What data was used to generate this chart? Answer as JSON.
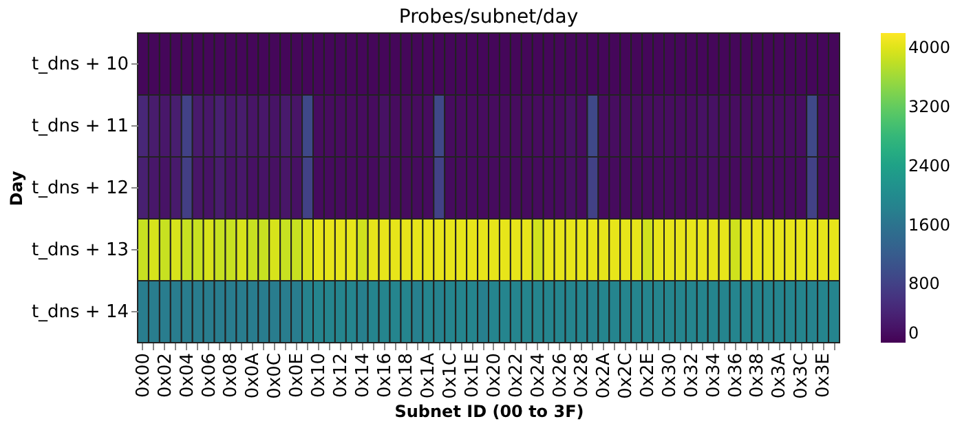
{
  "chart_data": {
    "type": "heatmap",
    "title": "Probes/subnet/day",
    "xlabel": "Subnet ID (00 to 3F)",
    "ylabel": "Day",
    "categories": [
      "0x00",
      null,
      "0x02",
      null,
      "0x04",
      null,
      "0x06",
      null,
      "0x08",
      null,
      "0x0A",
      null,
      "0x0C",
      null,
      "0x0E",
      null,
      "0x10",
      null,
      "0x12",
      null,
      "0x14",
      null,
      "0x16",
      null,
      "0x18",
      null,
      "0x1A",
      null,
      "0x1C",
      null,
      "0x1E",
      null,
      "0x20",
      null,
      "0x22",
      null,
      "0x24",
      null,
      "0x26",
      null,
      "0x28",
      null,
      "0x2A",
      null,
      "0x2C",
      null,
      "0x2E",
      null,
      "0x30",
      null,
      "0x32",
      null,
      "0x34",
      null,
      "0x36",
      null,
      "0x38",
      null,
      "0x3A",
      null,
      "0x3C",
      null,
      "0x3E",
      null
    ],
    "y_categories": [
      "t_dns + 10",
      "t_dns + 11",
      "t_dns + 12",
      "t_dns + 13",
      "t_dns + 14"
    ],
    "cells": [
      [
        60,
        60,
        60,
        60,
        60,
        60,
        60,
        60,
        60,
        60,
        60,
        60,
        60,
        60,
        60,
        60,
        60,
        60,
        60,
        60,
        60,
        60,
        60,
        60,
        60,
        60,
        60,
        60,
        60,
        60,
        60,
        60,
        60,
        60,
        60,
        60,
        60,
        60,
        60,
        60,
        60,
        60,
        60,
        60,
        60,
        60,
        60,
        60,
        60,
        60,
        60,
        60,
        60,
        60,
        60,
        60,
        60,
        60,
        60,
        60,
        60,
        60,
        60,
        60
      ],
      [
        450,
        300,
        250,
        330,
        800,
        280,
        250,
        350,
        250,
        300,
        220,
        250,
        200,
        280,
        220,
        900,
        120,
        120,
        120,
        120,
        120,
        120,
        180,
        120,
        120,
        120,
        120,
        900,
        120,
        120,
        120,
        120,
        120,
        120,
        120,
        120,
        120,
        120,
        120,
        180,
        120,
        900,
        130,
        130,
        130,
        130,
        130,
        130,
        130,
        130,
        130,
        180,
        180,
        130,
        130,
        130,
        130,
        130,
        130,
        130,
        130,
        900,
        120,
        120
      ],
      [
        350,
        250,
        200,
        280,
        750,
        230,
        200,
        300,
        200,
        250,
        180,
        200,
        170,
        230,
        180,
        800,
        110,
        110,
        110,
        110,
        110,
        110,
        150,
        110,
        110,
        110,
        110,
        800,
        110,
        110,
        110,
        110,
        110,
        110,
        110,
        110,
        110,
        110,
        110,
        150,
        110,
        800,
        110,
        110,
        110,
        110,
        110,
        110,
        110,
        110,
        110,
        150,
        150,
        110,
        110,
        110,
        110,
        110,
        110,
        110,
        110,
        800,
        110,
        110
      ],
      [
        3850,
        3950,
        3850,
        3950,
        3850,
        3850,
        3950,
        3850,
        3850,
        3950,
        3850,
        3850,
        3950,
        3850,
        3850,
        3950,
        4050,
        4050,
        4050,
        4050,
        3900,
        4050,
        4050,
        4050,
        4050,
        4050,
        4050,
        4050,
        4050,
        4050,
        4050,
        4050,
        4050,
        4050,
        4050,
        4050,
        3900,
        4050,
        4050,
        4050,
        4050,
        4050,
        4050,
        4050,
        4050,
        4050,
        3900,
        4050,
        4050,
        4050,
        4050,
        4050,
        4050,
        4050,
        3900,
        4050,
        4050,
        4050,
        4050,
        4050,
        4050,
        4050,
        4050,
        4050
      ],
      [
        1750,
        1750,
        1750,
        1750,
        1750,
        1750,
        1750,
        1750,
        1750,
        1750,
        1750,
        1750,
        1750,
        1750,
        1750,
        1850,
        1900,
        1900,
        1900,
        1900,
        1800,
        1900,
        1900,
        1900,
        1900,
        1800,
        1900,
        1850,
        1900,
        1900,
        1900,
        1800,
        1900,
        1900,
        1900,
        1900,
        1900,
        1900,
        1900,
        1900,
        1900,
        1850,
        1900,
        1900,
        1900,
        1900,
        1900,
        1900,
        1900,
        1900,
        1900,
        1900,
        1900,
        1900,
        1900,
        1900,
        1900,
        1900,
        1900,
        1900,
        1900,
        1850,
        1900,
        1900
      ]
    ],
    "clim": [
      0,
      4200
    ],
    "cticks": [
      0,
      800,
      1600,
      2400,
      3200,
      4000
    ]
  }
}
